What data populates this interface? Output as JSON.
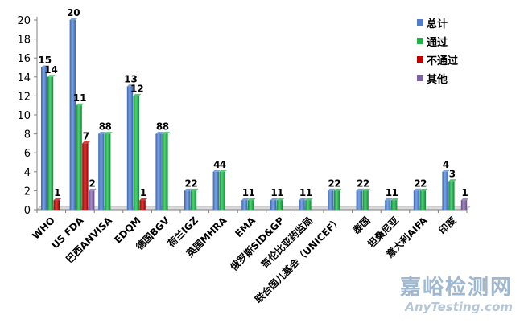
{
  "chart_data": {
    "type": "bar",
    "categories": [
      "WHO",
      "US FDA",
      "巴西ANVISA",
      "EDQM",
      "德国BGV",
      "荷兰IGZ",
      "英国MHRA",
      "EMA",
      "俄罗斯SID&GP",
      "哥伦比亚药监局",
      "联合国儿基会（UNICEF）",
      "泰国",
      "坦桑尼亚",
      "意大利AIFA",
      "印度"
    ],
    "series": [
      {
        "name": "总计",
        "color": "#4f7fc9",
        "values": [
          15,
          20,
          8,
          13,
          8,
          2,
          4,
          1,
          1,
          1,
          2,
          2,
          1,
          2,
          4
        ],
        "labels": [
          "15",
          "20",
          "8",
          "13",
          "8",
          "2",
          "4",
          "1",
          "1",
          "1",
          "2",
          "2",
          "1",
          "2",
          "4"
        ]
      },
      {
        "name": "通过",
        "color": "#22b04a",
        "values": [
          14,
          11,
          8,
          12,
          8,
          2,
          4,
          1,
          1,
          1,
          2,
          2,
          1,
          2,
          3
        ],
        "labels": [
          "14",
          "11",
          "8",
          "12",
          "8",
          "2",
          "4",
          "1",
          "1",
          "1",
          "2",
          "2",
          "1",
          "2",
          "3"
        ]
      },
      {
        "name": "不通过",
        "color": "#c00000",
        "values": [
          1,
          7,
          0,
          1,
          0,
          0,
          0,
          0,
          0,
          0,
          0,
          0,
          0,
          0,
          0
        ],
        "labels": [
          "1",
          "7",
          "",
          "1",
          "",
          "",
          "",
          "",
          "",
          "",
          "",
          "",
          "",
          "",
          ""
        ]
      },
      {
        "name": "其他",
        "color": "#8064a2",
        "values": [
          0,
          2,
          0,
          0,
          0,
          0,
          0,
          0,
          0,
          0,
          0,
          0,
          0,
          0,
          1
        ],
        "labels": [
          "",
          "2",
          "",
          "",
          "",
          "",
          "",
          "",
          "",
          "",
          "",
          "",
          "",
          "",
          "1"
        ]
      }
    ],
    "yticks": [
      "0",
      "2",
      "4",
      "6",
      "8",
      "10",
      "12",
      "14",
      "16",
      "18",
      "20"
    ],
    "ylim": [
      0,
      20
    ],
    "title": "",
    "xlabel": "",
    "ylabel": "",
    "grid": false,
    "legend": "top-right"
  },
  "watermark": {
    "text_cn": "嘉峪检测网",
    "text_en": "AnyTesting.com"
  }
}
